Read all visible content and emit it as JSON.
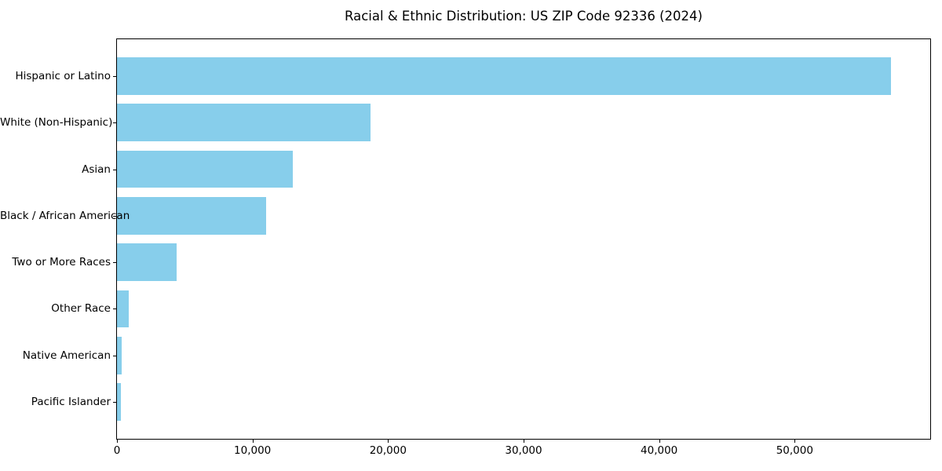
{
  "chart_data": {
    "type": "bar",
    "orientation": "horizontal",
    "title": "Racial & Ethnic Distribution: US ZIP Code 92336 (2024)",
    "categories": [
      "Hispanic or Latino",
      "White (Non-Hispanic)",
      "Asian",
      "Black / African American",
      "Two or More Races",
      "Other Race",
      "Native American",
      "Pacific Islander"
    ],
    "values": [
      57100,
      18700,
      13000,
      11000,
      4400,
      880,
      350,
      270
    ],
    "xlabel": "",
    "ylabel": "",
    "xlim": [
      0,
      60000
    ],
    "x_ticks": [
      {
        "value": 0,
        "label": "0"
      },
      {
        "value": 10000,
        "label": "10,000"
      },
      {
        "value": 20000,
        "label": "20,000"
      },
      {
        "value": 30000,
        "label": "30,000"
      },
      {
        "value": 40000,
        "label": "40,000"
      },
      {
        "value": 50000,
        "label": "50,000"
      }
    ],
    "grid": false,
    "legend": false,
    "bar_color": "#87CEEB",
    "background_color": "#ffffff",
    "text_color": "#000000",
    "bar_height_fraction": 0.8
  }
}
